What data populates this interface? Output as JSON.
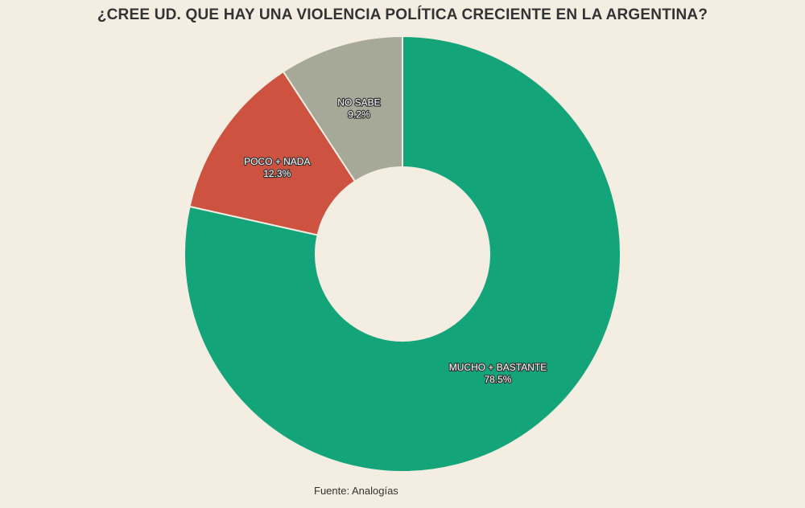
{
  "chart_data": {
    "type": "pie",
    "variant": "donut",
    "title": "¿CREE UD. QUE HAY UNA VIOLENCIA POLÍTICA CRECIENTE EN LA ARGENTINA?",
    "slices": [
      {
        "label": "MUCHO + BASTANTE",
        "value": 78.5,
        "value_label": "78.5%",
        "color": "#13a579"
      },
      {
        "label": "POCO + NADA",
        "value": 12.3,
        "value_label": "12.3%",
        "color": "#cd5340"
      },
      {
        "label": "NO SABE",
        "value": 9.2,
        "value_label": "9.2%",
        "color": "#a6a898"
      }
    ],
    "source": "Fuente: Analogías"
  }
}
